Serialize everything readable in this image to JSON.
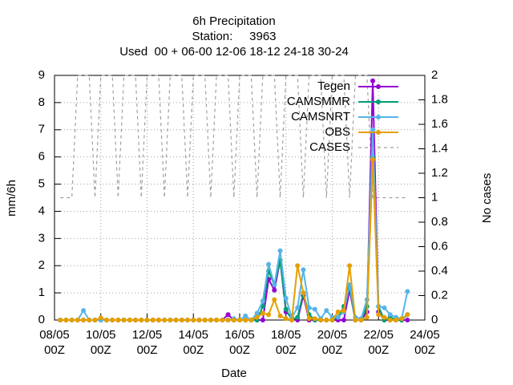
{
  "chart_data": {
    "type": "line",
    "title": [
      "6h Precipitation",
      "Station:     3963",
      "Used  00 + 06-00 12-06 18-12 24-18 30-24"
    ],
    "xlabel": "Date",
    "ylabel": "mm/6h",
    "y2label": "No cases",
    "x": [
      8.25,
      8.5,
      8.75,
      9,
      9.25,
      9.5,
      9.75,
      10,
      10.25,
      10.5,
      10.75,
      11,
      11.25,
      11.5,
      11.75,
      12,
      12.25,
      12.5,
      12.75,
      13,
      13.25,
      13.5,
      13.75,
      14,
      14.25,
      14.5,
      14.75,
      15,
      15.25,
      15.5,
      15.75,
      16,
      16.25,
      16.5,
      16.75,
      17,
      17.25,
      17.5,
      17.75,
      18,
      18.25,
      18.5,
      18.75,
      19,
      19.25,
      19.5,
      19.75,
      20,
      20.25,
      20.5,
      20.75,
      21,
      21.25,
      21.5,
      21.75,
      22,
      22.25,
      22.5,
      22.75,
      23,
      23.25
    ],
    "xlim": [
      8,
      24
    ],
    "xticks": [
      {
        "value": 8,
        "label": "08/05 00Z"
      },
      {
        "value": 10,
        "label": "10/05 00Z"
      },
      {
        "value": 12,
        "label": "12/05 00Z"
      },
      {
        "value": 14,
        "label": "14/05 00Z"
      },
      {
        "value": 16,
        "label": "16/05 00Z"
      },
      {
        "value": 18,
        "label": "18/05 00Z"
      },
      {
        "value": 20,
        "label": "20/05 00Z"
      },
      {
        "value": 22,
        "label": "22/05 00Z"
      },
      {
        "value": 24,
        "label": "24/05 00Z"
      }
    ],
    "ylim": [
      0,
      9
    ],
    "yticks": [
      0,
      1,
      2,
      3,
      4,
      5,
      6,
      7,
      8,
      9
    ],
    "y2lim": [
      0,
      2
    ],
    "y2ticks": [
      0,
      0.2,
      0.4,
      0.6,
      0.8,
      1,
      1.2,
      1.4,
      1.6,
      1.8,
      2
    ],
    "grid": true,
    "legend": "top-right",
    "series": [
      {
        "name": "Tegen",
        "color": "#9400d3",
        "values": [
          0,
          0,
          0,
          0,
          0,
          0,
          0,
          0,
          0,
          0,
          0,
          0,
          0,
          0,
          0,
          0,
          0,
          0,
          0,
          0,
          0,
          0,
          0,
          0,
          0,
          0,
          0,
          0,
          0,
          0.2,
          0,
          0,
          0,
          0,
          0,
          0,
          1.5,
          1.1,
          2.2,
          0.3,
          0.1,
          0,
          0.9,
          0,
          0,
          0,
          0,
          0,
          0,
          0,
          1.1,
          0,
          0,
          0.3,
          8.8,
          0.3,
          0,
          0,
          0,
          0,
          0
        ]
      },
      {
        "name": "CAMSMMR",
        "color": "#009e73",
        "values": [
          0,
          0,
          0,
          0,
          0,
          0,
          0,
          0,
          0,
          0,
          0,
          0,
          0,
          0,
          0,
          0,
          0,
          0,
          0,
          0,
          0,
          0,
          0,
          0,
          0,
          0,
          0,
          0,
          0,
          0,
          0,
          0,
          0,
          0,
          0,
          0.5,
          1.8,
          1.3,
          2.2,
          0.4,
          0,
          0.1,
          1.0,
          0.2,
          0,
          0,
          0,
          0,
          0.1,
          0.5,
          1.2,
          0,
          0,
          0.5,
          6.0,
          0.5,
          0,
          0.1,
          0,
          0,
          0.2
        ]
      },
      {
        "name": "CAMSNRT",
        "color": "#56b4e9",
        "values": [
          0,
          0,
          0,
          0,
          0.35,
          0,
          0,
          0,
          0,
          0,
          0,
          0,
          0,
          0,
          0,
          0,
          0,
          0,
          0,
          0,
          0,
          0,
          0,
          0,
          0,
          0,
          0,
          0,
          0,
          0,
          0.05,
          0,
          0.15,
          0,
          0.25,
          0.7,
          2.05,
          1.3,
          2.55,
          0.8,
          0.1,
          0.45,
          1.85,
          0.45,
          0.4,
          0.05,
          0.35,
          0.1,
          0.1,
          0.3,
          1.3,
          0.1,
          0.05,
          0.75,
          7.0,
          0.5,
          0.45,
          0.2,
          0.1,
          0.05,
          1.05
        ]
      },
      {
        "name": "OBS",
        "color": "#e69f00",
        "values": [
          0,
          0,
          0,
          0,
          0,
          0,
          0,
          0.08,
          0,
          0,
          0,
          0,
          0,
          0,
          0,
          0,
          0,
          0,
          0,
          0,
          0,
          0,
          0,
          0,
          0,
          0,
          0,
          0,
          0,
          0,
          0,
          0,
          0,
          0,
          0.1,
          0.25,
          0.2,
          0.75,
          0.15,
          0.05,
          0,
          2.0,
          1.0,
          0.05,
          0.05,
          0,
          0,
          0,
          0.3,
          0.35,
          2.0,
          0,
          0,
          0.1,
          5.9,
          0.2,
          0.1,
          0,
          0,
          0.05,
          0.2
        ]
      },
      {
        "name": "CASES",
        "color": "#a0a0a0",
        "axis": "y2",
        "dashed": true,
        "values": [
          1,
          1,
          1,
          2,
          2,
          2,
          1,
          2,
          2,
          2,
          1,
          2,
          2,
          2,
          1,
          2,
          2,
          2,
          1,
          2,
          2,
          2,
          1,
          2,
          2,
          2,
          1,
          2,
          2,
          2,
          1,
          2,
          2,
          2,
          1,
          2,
          2,
          2,
          1,
          2,
          2,
          2,
          1,
          2,
          2,
          2,
          1,
          2,
          2,
          2,
          1,
          2,
          2,
          2,
          1,
          1,
          1,
          1,
          1,
          1,
          1
        ]
      }
    ]
  }
}
